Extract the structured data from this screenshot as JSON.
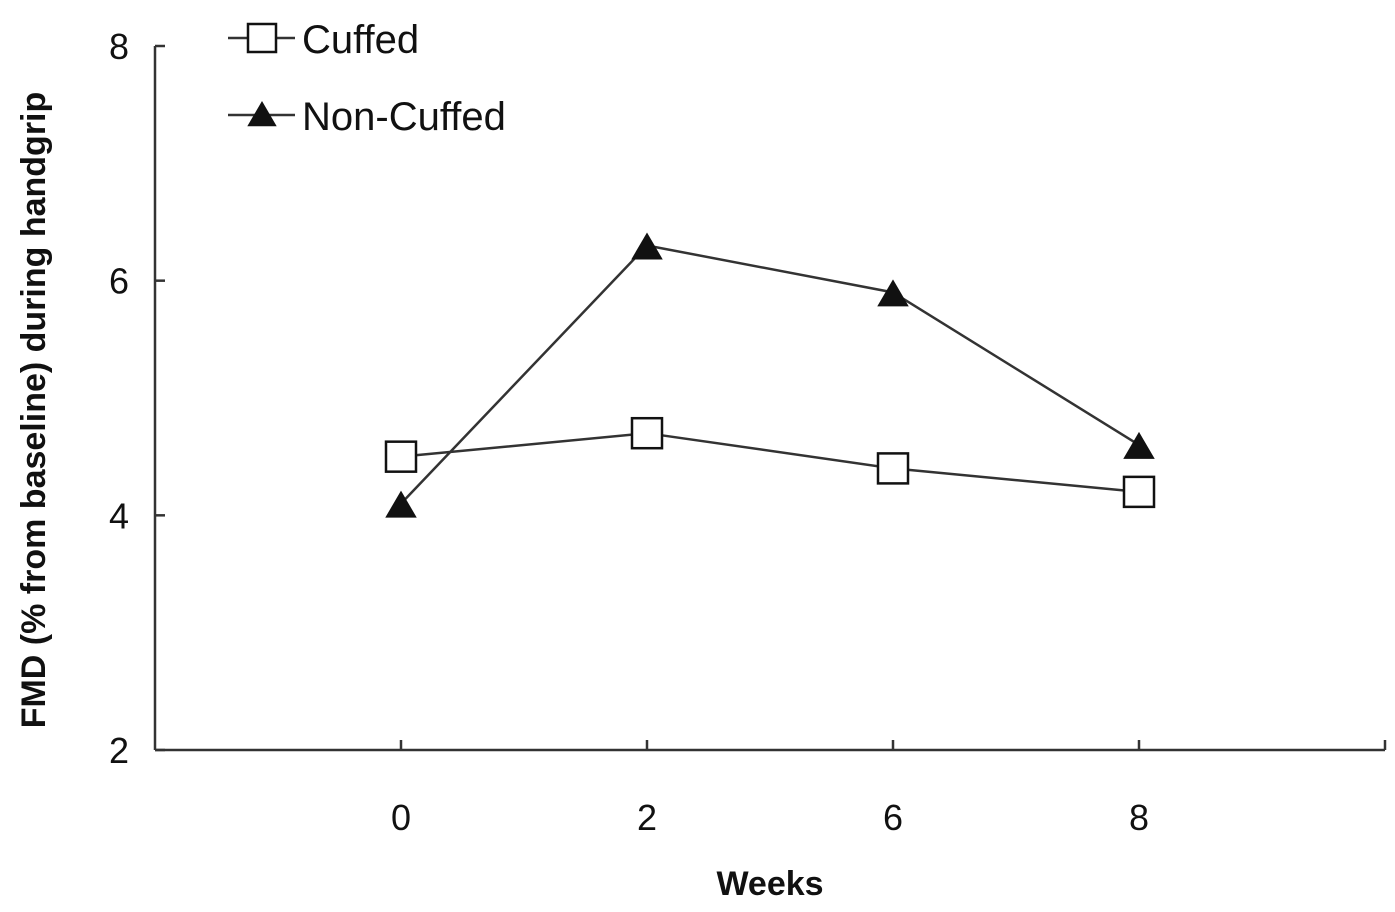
{
  "chart_data": {
    "type": "line",
    "categories": [
      "0",
      "2",
      "6",
      "8"
    ],
    "series": [
      {
        "name": "Cuffed",
        "marker": "open-square",
        "values": [
          4.5,
          4.7,
          4.4,
          4.2
        ]
      },
      {
        "name": "Non-Cuffed",
        "marker": "filled-triangle",
        "values": [
          4.1,
          6.3,
          5.9,
          4.6
        ]
      }
    ],
    "xlabel": "Weeks",
    "ylabel": "FMD (% from baseline) during handgrip",
    "ylim": [
      2,
      8
    ],
    "yticks": [
      "2",
      "4",
      "6",
      "8"
    ],
    "grid": false,
    "legend_position": "top-left",
    "colors": {
      "line": "#333333",
      "marker": "#111111"
    }
  }
}
